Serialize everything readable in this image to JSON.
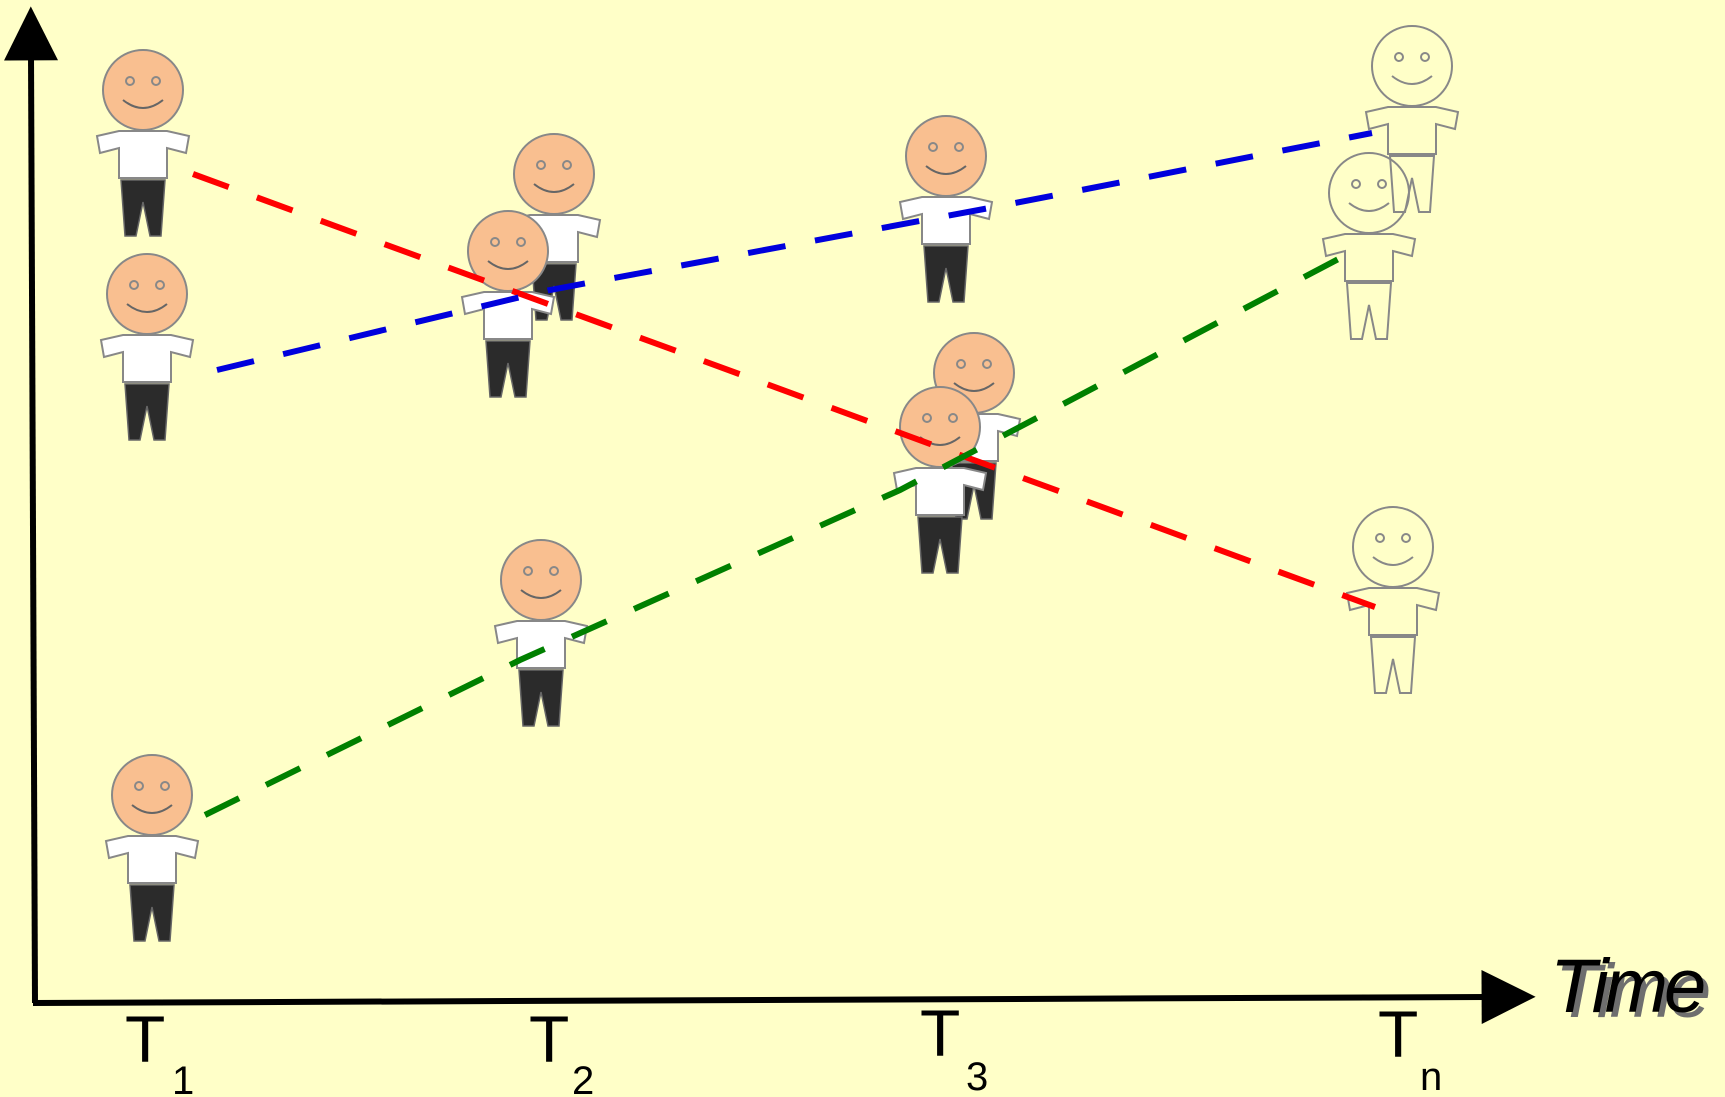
{
  "axis": {
    "x_label": "Time"
  },
  "ticks": [
    {
      "label": "T",
      "sub": "1"
    },
    {
      "label": "T",
      "sub": "2"
    },
    {
      "label": "T",
      "sub": "3"
    },
    {
      "label": "T",
      "sub": "n"
    }
  ],
  "colors": {
    "background": "#ffffc8",
    "skin": "#f9bf90",
    "shirt": "#ffffff",
    "pants": "#2b2b2b",
    "outline": "#888888",
    "track_red": "#ff0000",
    "track_blue": "#0000dd",
    "track_green": "#008000"
  },
  "tracks": [
    {
      "name": "red",
      "color": "#ff0000"
    },
    {
      "name": "blue",
      "color": "#0000dd"
    },
    {
      "name": "green",
      "color": "#008000"
    }
  ]
}
